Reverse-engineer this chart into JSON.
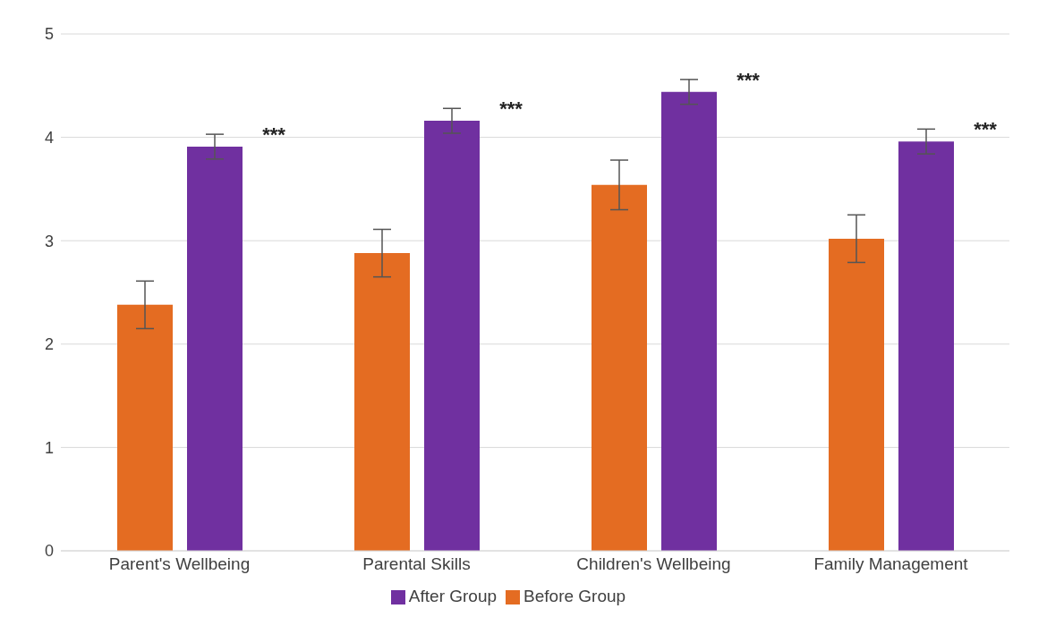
{
  "chart_data": {
    "type": "bar",
    "categories": [
      "Parent's Wellbeing",
      "Parental Skills",
      "Children's Wellbeing",
      "Family Management"
    ],
    "series": [
      {
        "name": "Before Group",
        "color": "#e46c22",
        "values": [
          2.38,
          2.88,
          3.54,
          3.02
        ],
        "errors": [
          0.23,
          0.23,
          0.24,
          0.23
        ]
      },
      {
        "name": "After Group",
        "color": "#7030a0",
        "values": [
          3.91,
          4.16,
          4.44,
          3.96
        ],
        "errors": [
          0.12,
          0.12,
          0.12,
          0.12
        ]
      }
    ],
    "ylim": [
      0,
      5
    ],
    "yticks": [
      0,
      1,
      2,
      3,
      4,
      5
    ],
    "grid": "y",
    "legend": "bottom",
    "annotations": [
      "***",
      "***",
      "***",
      "***"
    ]
  }
}
